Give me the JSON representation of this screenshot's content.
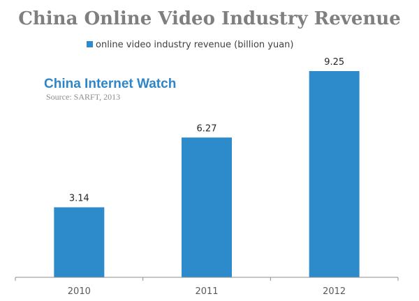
{
  "chart_data": {
    "type": "bar",
    "title": "China Online Video Industry Revenue",
    "categories": [
      "2010",
      "2011",
      "2012"
    ],
    "series": [
      {
        "name": "online video industry revenue (billion yuan)",
        "values": [
          3.14,
          6.27,
          9.25
        ]
      }
    ],
    "data_labels": [
      "3.14",
      "6.27",
      "9.25"
    ],
    "ylim": [
      0,
      10
    ],
    "grid": false,
    "legend_position": "top",
    "bar_color": "#2e8bcb",
    "axis_color": "#8c8c8c"
  },
  "annotations": {
    "brand": "China Internet Watch",
    "source": "Source: SARFT, 2013"
  }
}
